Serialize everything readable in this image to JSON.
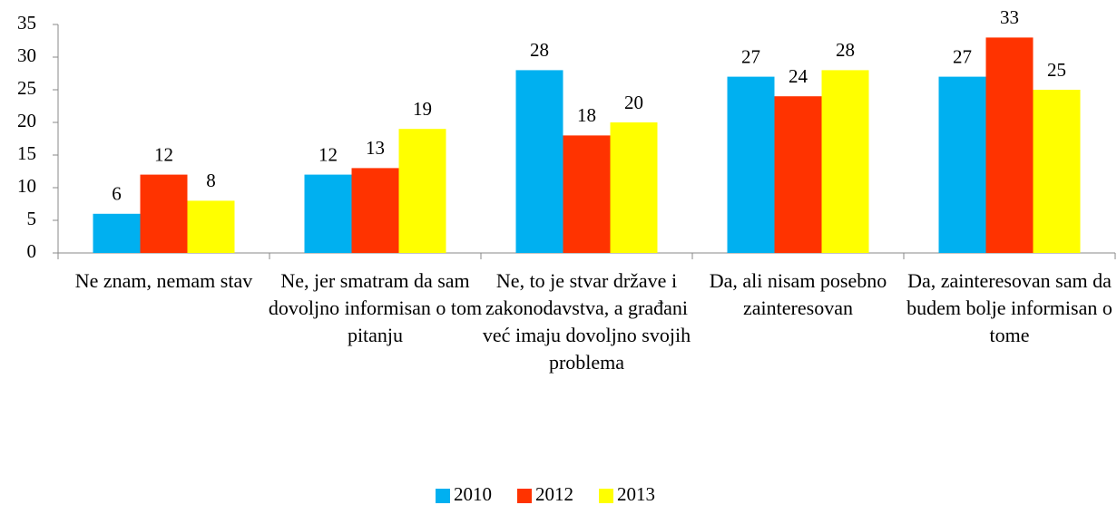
{
  "chart_data": {
    "type": "bar",
    "categories": [
      "Ne znam, nemam stav",
      "Ne, jer smatram da sam dovoljno informisan o tom pitanju",
      "Ne, to je stvar države i zakonodavstva, a građani već imaju dovoljno svojih problema",
      "Da, ali nisam posebno zainteresovan",
      "Da, zainteresovan sam da budem bolje informisan o tome"
    ],
    "series": [
      {
        "name": "2010",
        "color": "#00b0f0",
        "values": [
          6,
          12,
          28,
          27,
          27
        ]
      },
      {
        "name": "2012",
        "color": "#ff3300",
        "values": [
          12,
          13,
          18,
          24,
          33
        ]
      },
      {
        "name": "2013",
        "color": "#ffff00",
        "values": [
          8,
          19,
          20,
          28,
          25
        ]
      }
    ],
    "ylim": [
      0,
      35
    ],
    "yticks": [
      0,
      5,
      10,
      15,
      20,
      25,
      30,
      35
    ],
    "legend": "bottom"
  }
}
